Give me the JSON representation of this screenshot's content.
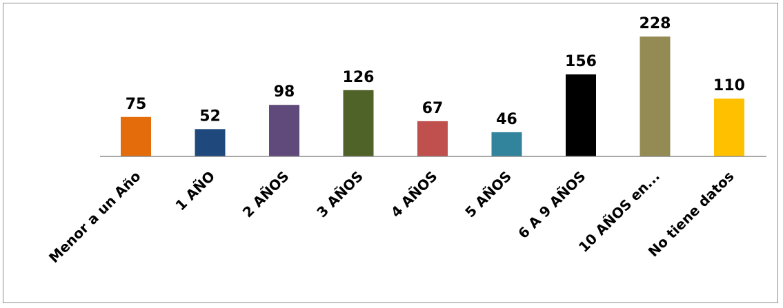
{
  "chart_data": {
    "type": "bar",
    "title": "",
    "xlabel": "",
    "ylabel": "",
    "categories": [
      "Menor a un Año",
      "1 AÑO",
      "2 AÑOS",
      "3 AÑOS",
      "4 AÑOS",
      "5 AÑOS",
      "6 A 9 AÑOS",
      "10 AÑOS en...",
      "No tiene datos"
    ],
    "values": [
      75,
      52,
      98,
      126,
      67,
      46,
      156,
      228,
      110
    ],
    "value_labels": [
      "75",
      "52",
      "98",
      "126",
      "67",
      "46",
      "156",
      "228",
      "110"
    ],
    "colors": [
      "#E46C0A",
      "#1F497D",
      "#604A7B",
      "#4F6228",
      "#C0504D",
      "#31849B",
      "#000000",
      "#948A54",
      "#FFC000"
    ],
    "ylim": [
      0,
      228
    ],
    "grid": false,
    "legend": "none"
  }
}
